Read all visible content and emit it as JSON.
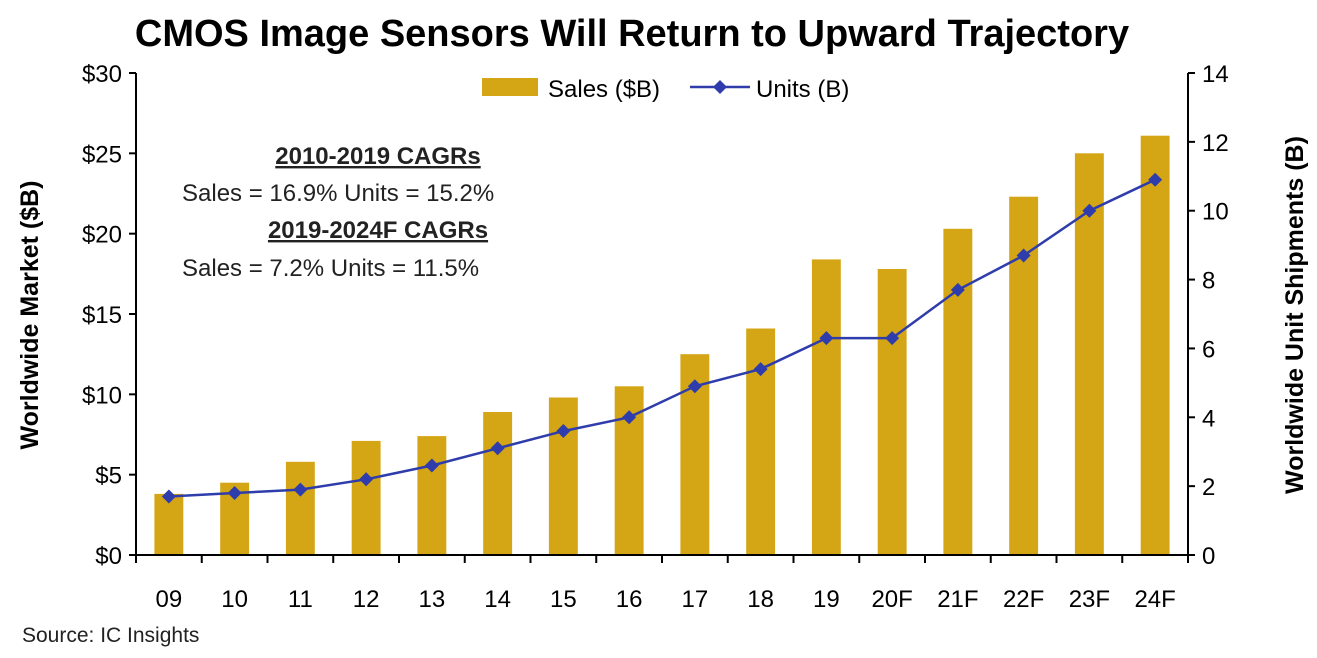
{
  "chart_data": {
    "type": "bar",
    "title": "CMOS Image Sensors Will Return to Upward Trajectory",
    "categories": [
      "09",
      "10",
      "11",
      "12",
      "13",
      "14",
      "15",
      "16",
      "17",
      "18",
      "19",
      "20F",
      "21F",
      "22F",
      "23F",
      "24F"
    ],
    "series": [
      {
        "name": "Sales ($B)",
        "type": "bar",
        "axis": "left",
        "color": "#D4A514",
        "values": [
          3.8,
          4.5,
          5.8,
          7.1,
          7.4,
          8.9,
          9.8,
          10.5,
          12.5,
          14.1,
          18.4,
          17.8,
          20.3,
          22.3,
          25.0,
          26.1
        ]
      },
      {
        "name": "Units (B)",
        "type": "line",
        "axis": "right",
        "color": "#2E3DAB",
        "marker": "diamond",
        "values": [
          1.7,
          1.8,
          1.9,
          2.2,
          2.6,
          3.1,
          3.6,
          4.0,
          4.9,
          5.4,
          6.3,
          6.3,
          7.7,
          8.7,
          10.0,
          10.9
        ]
      }
    ],
    "ylabel": "Worldwide Market ($B)",
    "ylabel_right": "Worldwide Unit Shipments (B)",
    "ylim": [
      0,
      30
    ],
    "ylim_right": [
      0,
      14
    ],
    "yticks": [
      "$0",
      "$5",
      "$10",
      "$15",
      "$20",
      "$25",
      "$30"
    ],
    "yticks_right": [
      "0",
      "2",
      "4",
      "6",
      "8",
      "10",
      "12",
      "14"
    ],
    "grid": false,
    "legend_position": "top-center",
    "annotations": [
      {
        "heading": "2010-2019 CAGRs",
        "text": "Sales = 16.9%  Units = 15.2%"
      },
      {
        "heading": "2019-2024F CAGRs",
        "text": "Sales = 7.2%  Units = 11.5%"
      }
    ]
  },
  "source": "Source: IC Insights"
}
